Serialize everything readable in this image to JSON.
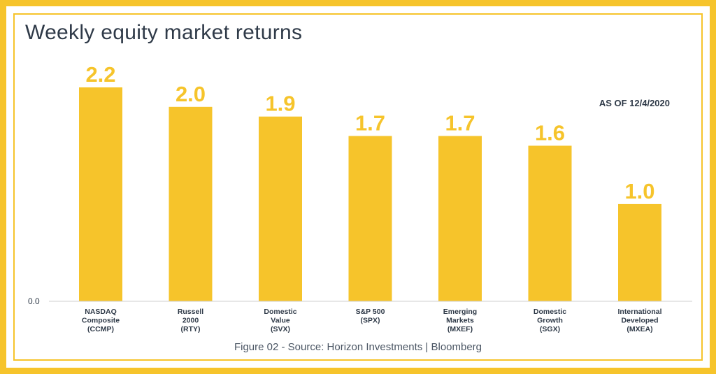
{
  "title": "Weekly equity market returns",
  "as_of": "AS OF 12/4/2020",
  "source": "Figure 02 - Source: Horizon Investments | Bloomberg",
  "colors": {
    "bar": "#F6C42B",
    "border": "#F6C42B",
    "text": "#2f3a48"
  },
  "chart_data": {
    "type": "bar",
    "categories": [
      [
        "NASDAQ",
        "Composite",
        "(CCMP)"
      ],
      [
        "Russell",
        "2000",
        "(RTY)"
      ],
      [
        "Domestic",
        "Value",
        "(SVX)"
      ],
      [
        "S&P 500",
        "(SPX)"
      ],
      [
        "Emerging",
        "Markets",
        "(MXEF)"
      ],
      [
        "Domestic",
        "Growth",
        "(SGX)"
      ],
      [
        "International",
        "Developed",
        "(MXEA)"
      ]
    ],
    "values": [
      2.2,
      2.0,
      1.9,
      1.7,
      1.7,
      1.6,
      1.0
    ],
    "value_labels": [
      "2.2",
      "2.0",
      "1.9",
      "1.7",
      "1.7",
      "1.6",
      "1.0"
    ],
    "y_tick_labels": [
      "0.0"
    ],
    "ylim": [
      0,
      2.2
    ],
    "grid": false,
    "legend": "none"
  }
}
